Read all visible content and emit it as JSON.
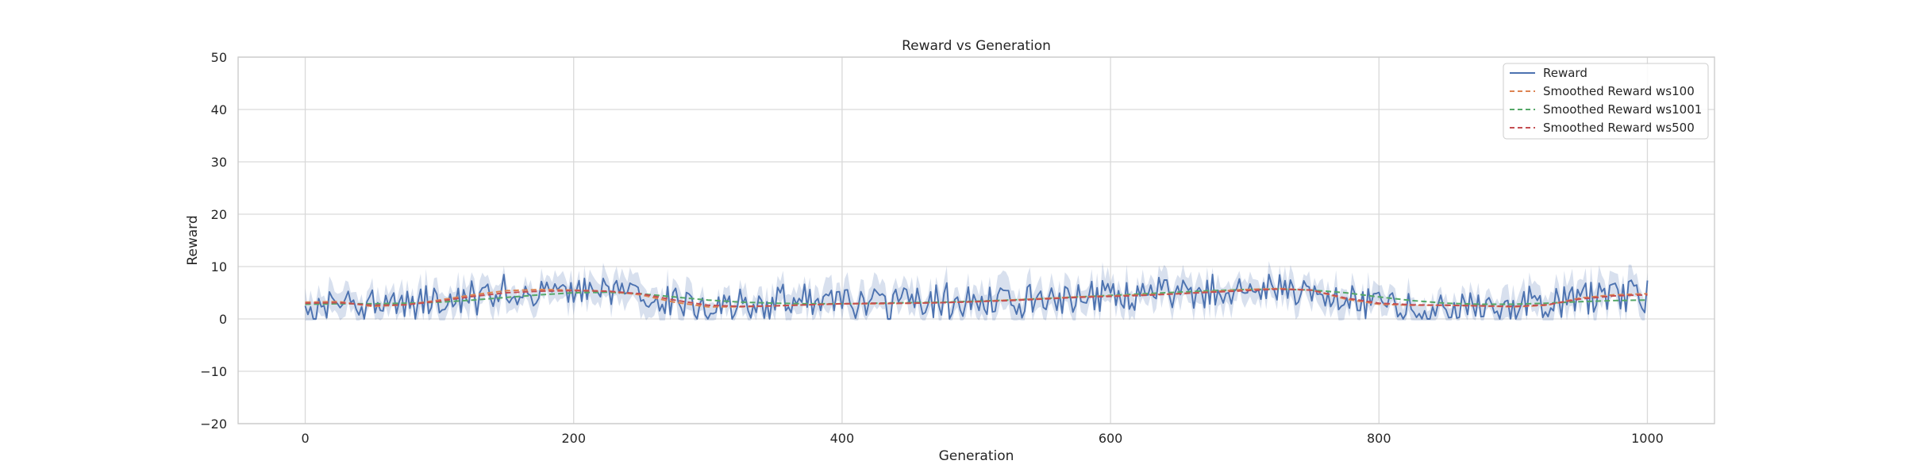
{
  "chart_data": {
    "type": "line",
    "title": "Reward vs Generation",
    "xlabel": "Generation",
    "ylabel": "Reward",
    "xlim": [
      -50,
      1050
    ],
    "ylim": [
      -20,
      50
    ],
    "xticks": [
      0,
      200,
      400,
      600,
      800,
      1000
    ],
    "yticks": [
      -20,
      -10,
      0,
      10,
      20,
      30,
      40,
      50
    ],
    "grid": true,
    "legend_position": "top-right",
    "raw_series": {
      "name": "Reward",
      "style": "solid",
      "color": "#4c72b0",
      "band_color": "#4c72b0",
      "x_range": [
        0,
        1000
      ],
      "envelope": {
        "x": [
          0,
          25,
          50,
          75,
          100,
          125,
          150,
          175,
          200,
          225,
          250,
          275,
          300,
          325,
          350,
          375,
          400,
          425,
          450,
          475,
          500,
          525,
          550,
          575,
          600,
          625,
          650,
          675,
          700,
          725,
          750,
          775,
          800,
          825,
          850,
          875,
          900,
          925,
          950,
          975,
          1000
        ],
        "center": [
          2.5,
          3.2,
          2.4,
          2.8,
          3.8,
          4.6,
          5.3,
          5.4,
          5.6,
          5.5,
          4.8,
          3.2,
          2.2,
          2.4,
          2.6,
          2.8,
          3.0,
          2.9,
          3.0,
          3.1,
          3.4,
          3.6,
          3.9,
          4.3,
          4.5,
          4.6,
          4.8,
          5.2,
          5.5,
          5.8,
          5.4,
          3.6,
          2.8,
          2.6,
          2.6,
          2.5,
          2.4,
          2.6,
          3.8,
          4.6,
          4.7
        ],
        "amplitude": [
          2.8,
          3.2,
          2.6,
          2.8,
          3.0,
          3.0,
          2.6,
          2.4,
          2.4,
          2.6,
          3.0,
          2.8,
          2.4,
          2.6,
          2.8,
          2.9,
          3.0,
          3.0,
          3.0,
          3.0,
          3.1,
          3.2,
          3.1,
          3.0,
          3.0,
          3.0,
          2.8,
          2.6,
          2.4,
          2.4,
          2.6,
          3.0,
          2.6,
          2.6,
          2.6,
          2.7,
          2.8,
          3.0,
          3.2,
          3.0,
          2.8
        ]
      },
      "min": 0,
      "max": 8.5
    },
    "series": [
      {
        "name": "Smoothed Reward ws100",
        "style": "dashed",
        "color": "#dd8452",
        "x": [
          0,
          25,
          50,
          75,
          100,
          125,
          150,
          175,
          200,
          225,
          250,
          275,
          300,
          325,
          350,
          375,
          400,
          425,
          450,
          475,
          500,
          525,
          550,
          575,
          600,
          625,
          650,
          675,
          700,
          725,
          750,
          775,
          800,
          825,
          850,
          875,
          900,
          925,
          950,
          975,
          1000
        ],
        "values": [
          3.2,
          3.3,
          2.4,
          2.7,
          3.6,
          4.6,
          5.4,
          5.6,
          5.5,
          5.3,
          4.6,
          3.2,
          2.3,
          2.3,
          2.5,
          2.7,
          2.9,
          2.9,
          3.0,
          3.1,
          3.3,
          3.6,
          3.9,
          4.2,
          4.4,
          4.6,
          4.8,
          5.2,
          5.6,
          5.8,
          5.5,
          3.8,
          2.8,
          2.6,
          2.6,
          2.5,
          2.3,
          2.6,
          4.0,
          4.6,
          4.8
        ]
      },
      {
        "name": "Smoothed Reward ws1001",
        "style": "dashed",
        "color": "#55a868",
        "x": [
          0,
          25,
          50,
          75,
          100,
          125,
          150,
          175,
          200,
          225,
          250,
          275,
          300,
          325,
          350,
          375,
          400,
          425,
          450,
          475,
          500,
          525,
          550,
          575,
          600,
          625,
          650,
          675,
          700,
          725,
          750,
          775,
          800,
          825,
          850,
          875,
          900,
          925,
          950,
          975,
          1000
        ],
        "values": [
          2.8,
          2.9,
          2.9,
          3.0,
          3.2,
          3.6,
          4.1,
          4.6,
          5.0,
          5.1,
          4.8,
          4.2,
          3.6,
          3.2,
          3.0,
          2.9,
          2.9,
          3.0,
          3.1,
          3.2,
          3.4,
          3.6,
          3.9,
          4.2,
          4.5,
          4.8,
          5.1,
          5.4,
          5.6,
          5.7,
          5.5,
          5.0,
          4.2,
          3.5,
          3.0,
          2.8,
          2.8,
          3.0,
          3.3,
          3.5,
          3.6
        ]
      },
      {
        "name": "Smoothed Reward ws500",
        "style": "dashed",
        "color": "#c44e52",
        "x": [
          0,
          25,
          50,
          75,
          100,
          125,
          150,
          175,
          200,
          225,
          250,
          275,
          300,
          325,
          350,
          375,
          400,
          425,
          450,
          475,
          500,
          525,
          550,
          575,
          600,
          625,
          650,
          675,
          700,
          725,
          750,
          775,
          800,
          825,
          850,
          875,
          900,
          925,
          950,
          975,
          1000
        ],
        "values": [
          3.0,
          3.1,
          2.6,
          2.7,
          3.4,
          4.3,
          5.0,
          5.3,
          5.4,
          5.3,
          4.8,
          3.6,
          2.6,
          2.4,
          2.5,
          2.7,
          2.9,
          3.0,
          3.0,
          3.1,
          3.3,
          3.5,
          3.8,
          4.1,
          4.3,
          4.5,
          4.8,
          5.1,
          5.4,
          5.7,
          5.5,
          4.0,
          3.0,
          2.7,
          2.6,
          2.5,
          2.4,
          2.7,
          3.8,
          4.4,
          4.6
        ]
      }
    ]
  }
}
